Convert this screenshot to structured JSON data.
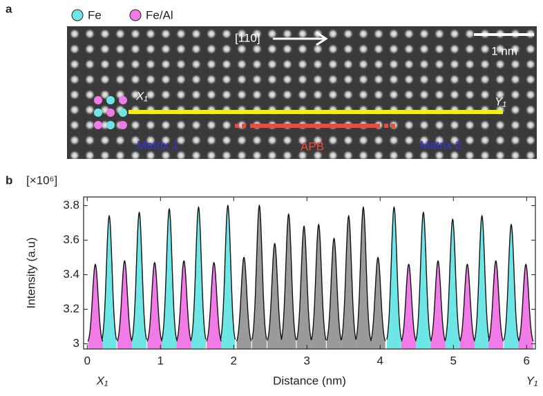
{
  "panel_labels": [
    "a",
    "b"
  ],
  "image_panel": {
    "direction": "[110]",
    "scale_bar": "1 nm",
    "start": "X₁",
    "end": "Y₁",
    "left_region": "Matrix 1",
    "right_region": "Matrix 2"
  },
  "chart_data": {
    "type": "peaks",
    "y_unit": "[×10⁶]",
    "y_label": "Intensity (a.u)",
    "x_label": "Distance (nm)",
    "xlim": [
      -0.05,
      6.12
    ],
    "xticks": [
      0,
      1,
      2,
      3,
      4,
      5,
      6
    ],
    "ylim": [
      2.97,
      3.85
    ],
    "yticks": [
      3,
      3.2,
      3.4,
      3.6,
      3.8
    ],
    "series": [
      {
        "name": "Fe",
        "color": "#6fe6e6",
        "x": [
          0.3,
          0.71,
          1.12,
          1.52,
          1.92,
          4.19,
          4.59,
          4.99,
          5.39,
          5.79
        ],
        "values": [
          3.74,
          3.76,
          3.78,
          3.79,
          3.8,
          3.79,
          3.76,
          3.72,
          3.74,
          3.69
        ]
      },
      {
        "name": "Fe/Al",
        "color": "#f07ae6",
        "x": [
          0.11,
          0.51,
          0.92,
          1.32,
          1.73,
          4.39,
          4.79,
          5.19,
          5.58,
          5.99
        ],
        "values": [
          3.46,
          3.48,
          3.47,
          3.48,
          3.47,
          3.46,
          3.48,
          3.46,
          3.48,
          3.46
        ]
      },
      {
        "name": "APB",
        "color": "#9a9a9a",
        "x": [
          2.14,
          2.35,
          2.56,
          2.75,
          2.96,
          3.16,
          3.37,
          3.57,
          3.77,
          3.97
        ],
        "values": [
          3.5,
          3.8,
          3.58,
          3.75,
          3.68,
          3.69,
          3.61,
          3.74,
          3.79,
          3.5
        ]
      }
    ]
  }
}
